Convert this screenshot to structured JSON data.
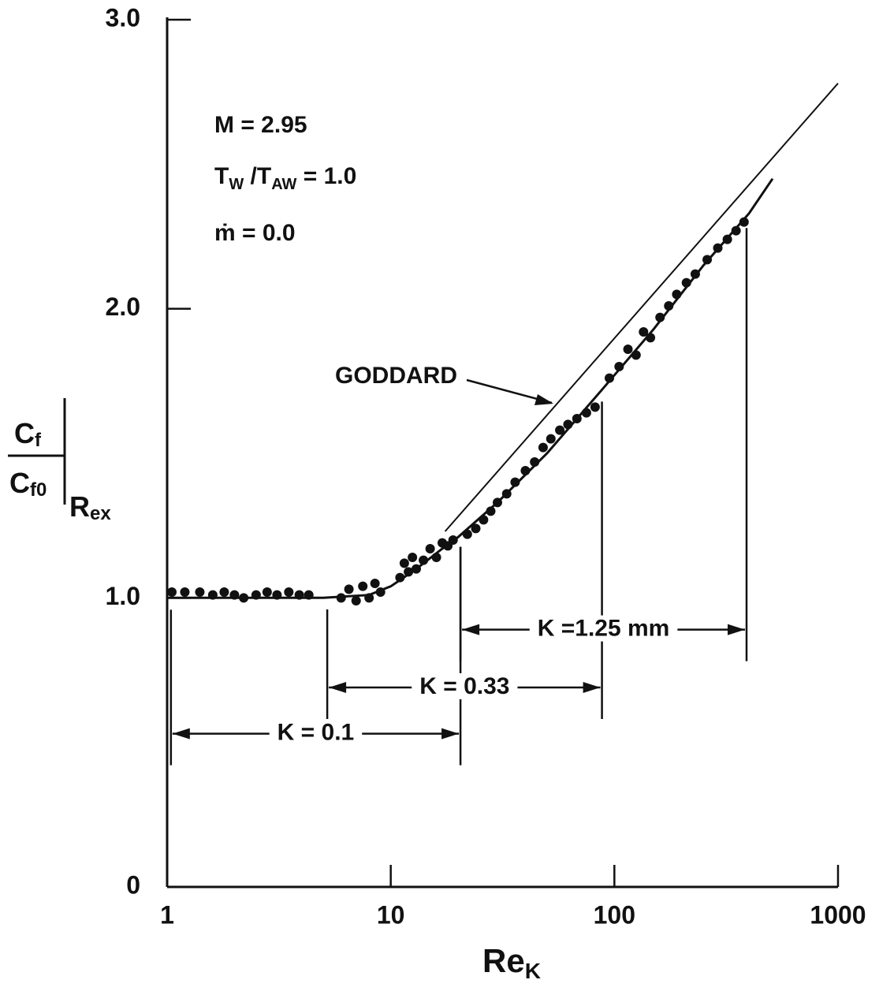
{
  "chart_data": {
    "type": "scatter",
    "xlabel": "Re",
    "xlabel_sub": "K",
    "ylabel": {
      "num": "C",
      "num_sub": "f",
      "den": "C",
      "den_sub": "f0",
      "at": "R",
      "at_sub": "ex"
    },
    "notes": {
      "mach": "M = 2.95",
      "temp": [
        "T",
        "W",
        " /T",
        "AW",
        " = 1.0"
      ],
      "mdot": "ṁ = 0.0",
      "goddard": "GODDARD"
    },
    "xscale": "log",
    "xlim": [
      1,
      1000
    ],
    "xticks": [
      1,
      10,
      100,
      1000
    ],
    "ylim": [
      0,
      3
    ],
    "yticks": [
      0,
      {
        "value": 1,
        "label": "1.0"
      },
      {
        "value": 2,
        "label": "2.0"
      },
      {
        "value": 3,
        "label": "3.0"
      }
    ],
    "color": "#111111",
    "x": [
      1.05,
      1.2,
      1.4,
      1.6,
      1.8,
      2.0,
      2.2,
      2.5,
      2.8,
      3.1,
      3.5,
      3.9,
      4.3,
      6,
      6.5,
      7,
      7.5,
      8,
      8.5,
      9,
      11,
      11.5,
      12,
      12.5,
      13,
      14,
      15,
      16,
      17,
      18,
      19,
      22,
      24,
      26,
      28,
      30,
      33,
      36,
      40,
      44,
      48,
      52,
      57,
      62,
      68,
      75,
      82,
      95,
      105,
      115,
      125,
      135,
      145,
      160,
      175,
      190,
      210,
      230,
      260,
      290,
      320,
      350,
      380
    ],
    "values": [
      1.02,
      1.02,
      1.02,
      1.01,
      1.02,
      1.01,
      1.0,
      1.01,
      1.02,
      1.01,
      1.02,
      1.01,
      1.01,
      1.0,
      1.03,
      0.99,
      1.04,
      1.0,
      1.05,
      1.02,
      1.07,
      1.12,
      1.09,
      1.14,
      1.1,
      1.13,
      1.17,
      1.14,
      1.19,
      1.18,
      1.2,
      1.22,
      1.24,
      1.27,
      1.3,
      1.33,
      1.36,
      1.4,
      1.44,
      1.47,
      1.52,
      1.55,
      1.58,
      1.6,
      1.62,
      1.64,
      1.66,
      1.76,
      1.8,
      1.86,
      1.84,
      1.92,
      1.9,
      1.97,
      2.01,
      2.05,
      2.09,
      2.12,
      2.17,
      2.21,
      2.24,
      2.27,
      2.3
    ],
    "lines": [
      {
        "x": [
          1,
          5,
          8,
          10,
          13,
          17,
          20,
          30,
          50,
          88,
          150,
          250,
          400,
          510
        ],
        "values": [
          1.0,
          1.0,
          1.01,
          1.04,
          1.1,
          1.17,
          1.21,
          1.33,
          1.5,
          1.72,
          1.93,
          2.15,
          2.33,
          2.45
        ]
      },
      {
        "x": [
          17.5,
          1000
        ],
        "values": [
          1.23,
          2.78
        ]
      }
    ],
    "ranges": [
      {
        "label": "K = 0.1",
        "x": [
          1.04,
          20.5
        ],
        "y": 0.53
      },
      {
        "label": "K = 0.33",
        "x": [
          5.2,
          88
        ],
        "y": 0.69
      },
      {
        "label": "K =1.25 mm",
        "x": [
          20.5,
          390
        ],
        "y": 0.89
      }
    ]
  }
}
